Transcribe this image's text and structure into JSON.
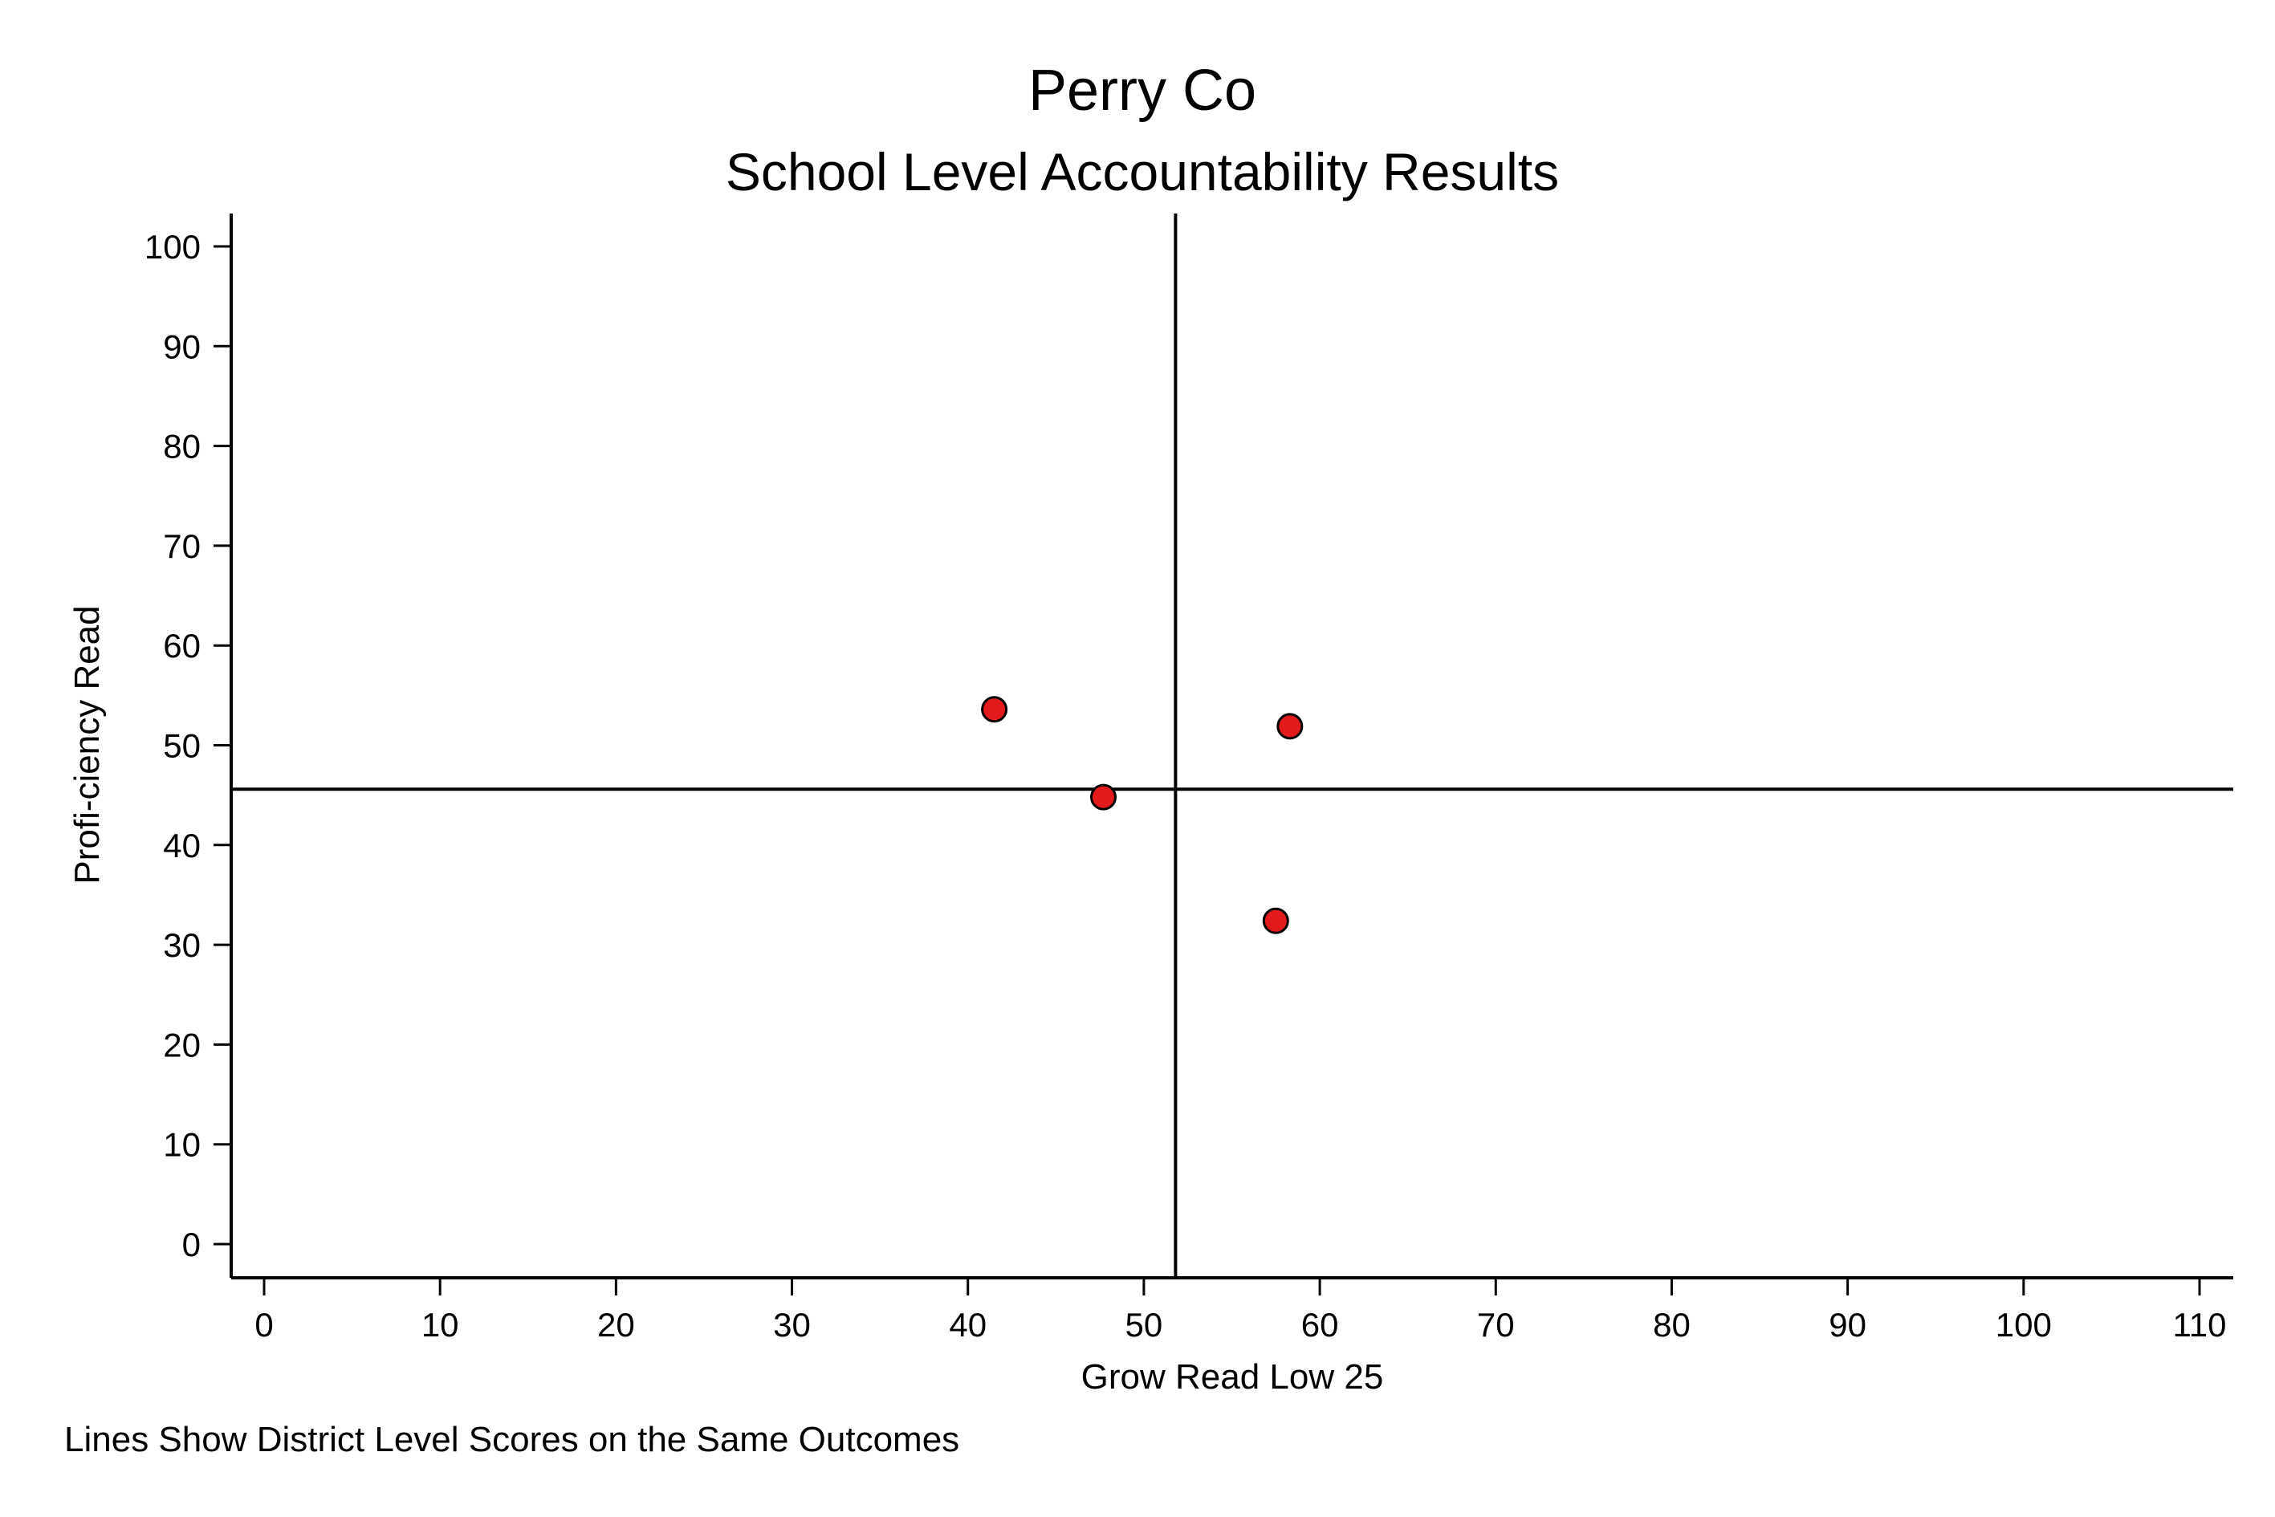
{
  "chart_data": {
    "type": "scatter",
    "title": "Perry Co",
    "subtitle": "School Level Accountability Results",
    "xlabel": "Grow Read Low 25",
    "ylabel": "Profi-ciency Read",
    "note": "Lines Show District Level Scores on the Same Outcomes",
    "xlim": [
      0,
      110
    ],
    "ylim": [
      0,
      100
    ],
    "x_ticks": [
      0,
      10,
      20,
      30,
      40,
      50,
      60,
      70,
      80,
      90,
      100,
      110
    ],
    "y_ticks": [
      0,
      10,
      20,
      30,
      40,
      50,
      60,
      70,
      80,
      90,
      100
    ],
    "grid": false,
    "marker_color": "#e31a1c",
    "points": [
      {
        "x": 41.5,
        "y": 53.6
      },
      {
        "x": 47.7,
        "y": 44.8
      },
      {
        "x": 58.3,
        "y": 51.9
      },
      {
        "x": 57.5,
        "y": 32.4
      }
    ],
    "reference_lines": {
      "x": 51.8,
      "y": 45.6
    }
  }
}
